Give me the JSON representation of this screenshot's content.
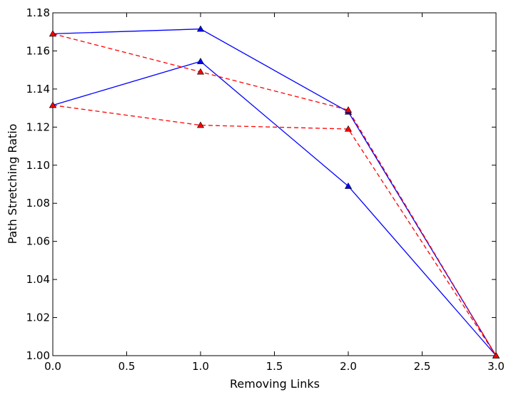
{
  "chart_data": {
    "type": "line",
    "title": "",
    "xlabel": "Removing Links",
    "ylabel": "Path Stretching Ratio",
    "xlim": [
      0.0,
      3.0
    ],
    "ylim": [
      1.0,
      1.18
    ],
    "xticks": [
      0.0,
      0.5,
      1.0,
      1.5,
      2.0,
      2.5,
      3.0
    ],
    "xtick_labels": [
      "0.0",
      "0.5",
      "1.0",
      "1.5",
      "2.0",
      "2.5",
      "3.0"
    ],
    "yticks": [
      1.0,
      1.02,
      1.04,
      1.06,
      1.08,
      1.1,
      1.12,
      1.14,
      1.16,
      1.18
    ],
    "ytick_labels": [
      "1.00",
      "1.02",
      "1.04",
      "1.06",
      "1.08",
      "1.10",
      "1.12",
      "1.14",
      "1.16",
      "1.18"
    ],
    "grid": false,
    "legend": "none",
    "x": [
      0,
      1,
      2,
      3
    ],
    "series": [
      {
        "values": [
          1.169,
          1.1715,
          1.128,
          1.0
        ],
        "color": "#0000ff",
        "dash": "solid",
        "marker": "triangle"
      },
      {
        "values": [
          1.1315,
          1.1545,
          1.089,
          1.0
        ],
        "color": "#0000ff",
        "dash": "solid",
        "marker": "triangle"
      },
      {
        "values": [
          1.169,
          1.149,
          1.129,
          1.0
        ],
        "color": "#ff0000",
        "dash": "dashed",
        "marker": "triangle"
      },
      {
        "values": [
          1.1315,
          1.121,
          1.119,
          1.0
        ],
        "color": "#ff0000",
        "dash": "dashed",
        "marker": "triangle"
      }
    ]
  }
}
